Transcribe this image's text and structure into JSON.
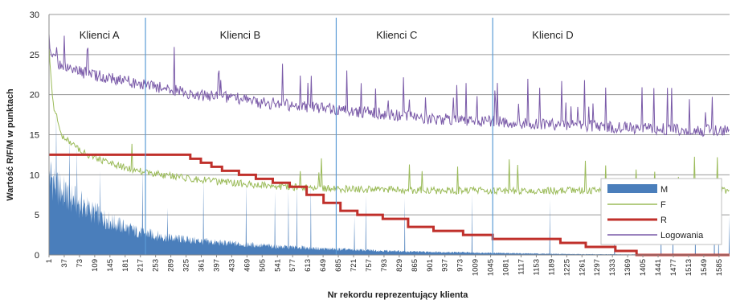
{
  "chart_data": {
    "type": "line",
    "title": "",
    "xlabel": "Nr rekordu reprezentujący klienta",
    "ylabel": "Wartość R/F/M w punktach",
    "ylim": [
      0,
      30
    ],
    "xlim": [
      1,
      1610
    ],
    "y_ticks": [
      "0",
      "5",
      "10",
      "15",
      "20",
      "25",
      "30"
    ],
    "x_ticks": [
      "1",
      "37",
      "73",
      "109",
      "145",
      "181",
      "217",
      "253",
      "289",
      "325",
      "361",
      "397",
      "433",
      "469",
      "505",
      "541",
      "577",
      "613",
      "649",
      "685",
      "721",
      "757",
      "793",
      "829",
      "865",
      "901",
      "937",
      "973",
      "1009",
      "1045",
      "1081",
      "1117",
      "1153",
      "1189",
      "1225",
      "1261",
      "1297",
      "1333",
      "1369",
      "1405",
      "1441",
      "1477",
      "1513",
      "1549",
      "1585"
    ],
    "grid": true,
    "legend_position": "bottom-right",
    "annotations": [
      {
        "label": "Klienci A",
        "x": 120
      },
      {
        "label": "Klienci B",
        "x": 453
      },
      {
        "label": "Klienci C",
        "x": 823
      },
      {
        "label": "Klienci D",
        "x": 1192
      }
    ],
    "separators_x": [
      229,
      680,
      1050
    ],
    "series": [
      {
        "name": "M",
        "style": "area",
        "color": "#4a7ebb",
        "x": [
          1,
          20,
          50,
          100,
          150,
          200,
          250,
          300,
          350,
          400,
          450,
          500,
          550,
          600,
          650,
          700,
          750,
          800,
          850,
          900,
          950,
          1000,
          1050,
          1100,
          1150,
          1200,
          1300,
          1400,
          1500,
          1610
        ],
        "y": [
          12,
          10,
          8.5,
          6.5,
          4.8,
          3.6,
          2.9,
          2.4,
          2.1,
          1.8,
          1.6,
          1.4,
          1.2,
          1.1,
          0.9,
          0.8,
          0.7,
          0.6,
          0.5,
          0.45,
          0.4,
          0.35,
          0.3,
          0.25,
          0.2,
          0.15,
          0.1,
          0.08,
          0.05,
          0.05
        ]
      },
      {
        "name": "F",
        "style": "line",
        "color": "#9bbb59",
        "x": [
          1,
          10,
          30,
          60,
          100,
          150,
          200,
          250,
          300,
          350,
          400,
          450,
          500,
          550,
          600,
          650,
          700,
          800,
          900,
          1000,
          1100,
          1200,
          1300,
          1400,
          1500,
          1610
        ],
        "y": [
          26,
          19,
          15,
          13.5,
          12.3,
          11.3,
          10.6,
          10.1,
          9.7,
          9.4,
          9.1,
          8.9,
          8.7,
          8.5,
          8.4,
          8.3,
          8.2,
          8.1,
          8.0,
          8.0,
          8.0,
          8.0,
          8.0,
          8.0,
          8.0,
          8.0
        ]
      },
      {
        "name": "R",
        "style": "step",
        "color": "#c0302b",
        "x": [
          1,
          120,
          310,
          335,
          360,
          385,
          410,
          450,
          490,
          530,
          570,
          610,
          650,
          690,
          730,
          790,
          850,
          910,
          980,
          1050,
          1210,
          1270,
          1340,
          1390,
          1610
        ],
        "y": [
          12.5,
          12.5,
          12.5,
          12,
          11.5,
          11,
          10.5,
          10,
          9.5,
          9,
          8.5,
          7.5,
          6.5,
          5.5,
          5,
          4.5,
          3.5,
          3,
          2.5,
          2,
          1.5,
          1,
          0.5,
          0,
          0
        ]
      },
      {
        "name": "Logowania",
        "style": "line",
        "color": "#7a5aa8",
        "x": [
          1,
          10,
          30,
          60,
          100,
          150,
          200,
          250,
          300,
          350,
          400,
          450,
          500,
          550,
          600,
          650,
          700,
          750,
          800,
          900,
          1000,
          1100,
          1200,
          1300,
          1400,
          1500,
          1610
        ],
        "y": [
          27,
          24.5,
          23.5,
          23,
          22.5,
          22,
          21.5,
          21,
          20.5,
          20,
          19.8,
          19.5,
          19,
          18.8,
          18.5,
          18.2,
          18,
          17.8,
          17.5,
          17,
          16.8,
          16.5,
          16.2,
          16,
          15.8,
          15.6,
          15.4
        ]
      }
    ]
  }
}
